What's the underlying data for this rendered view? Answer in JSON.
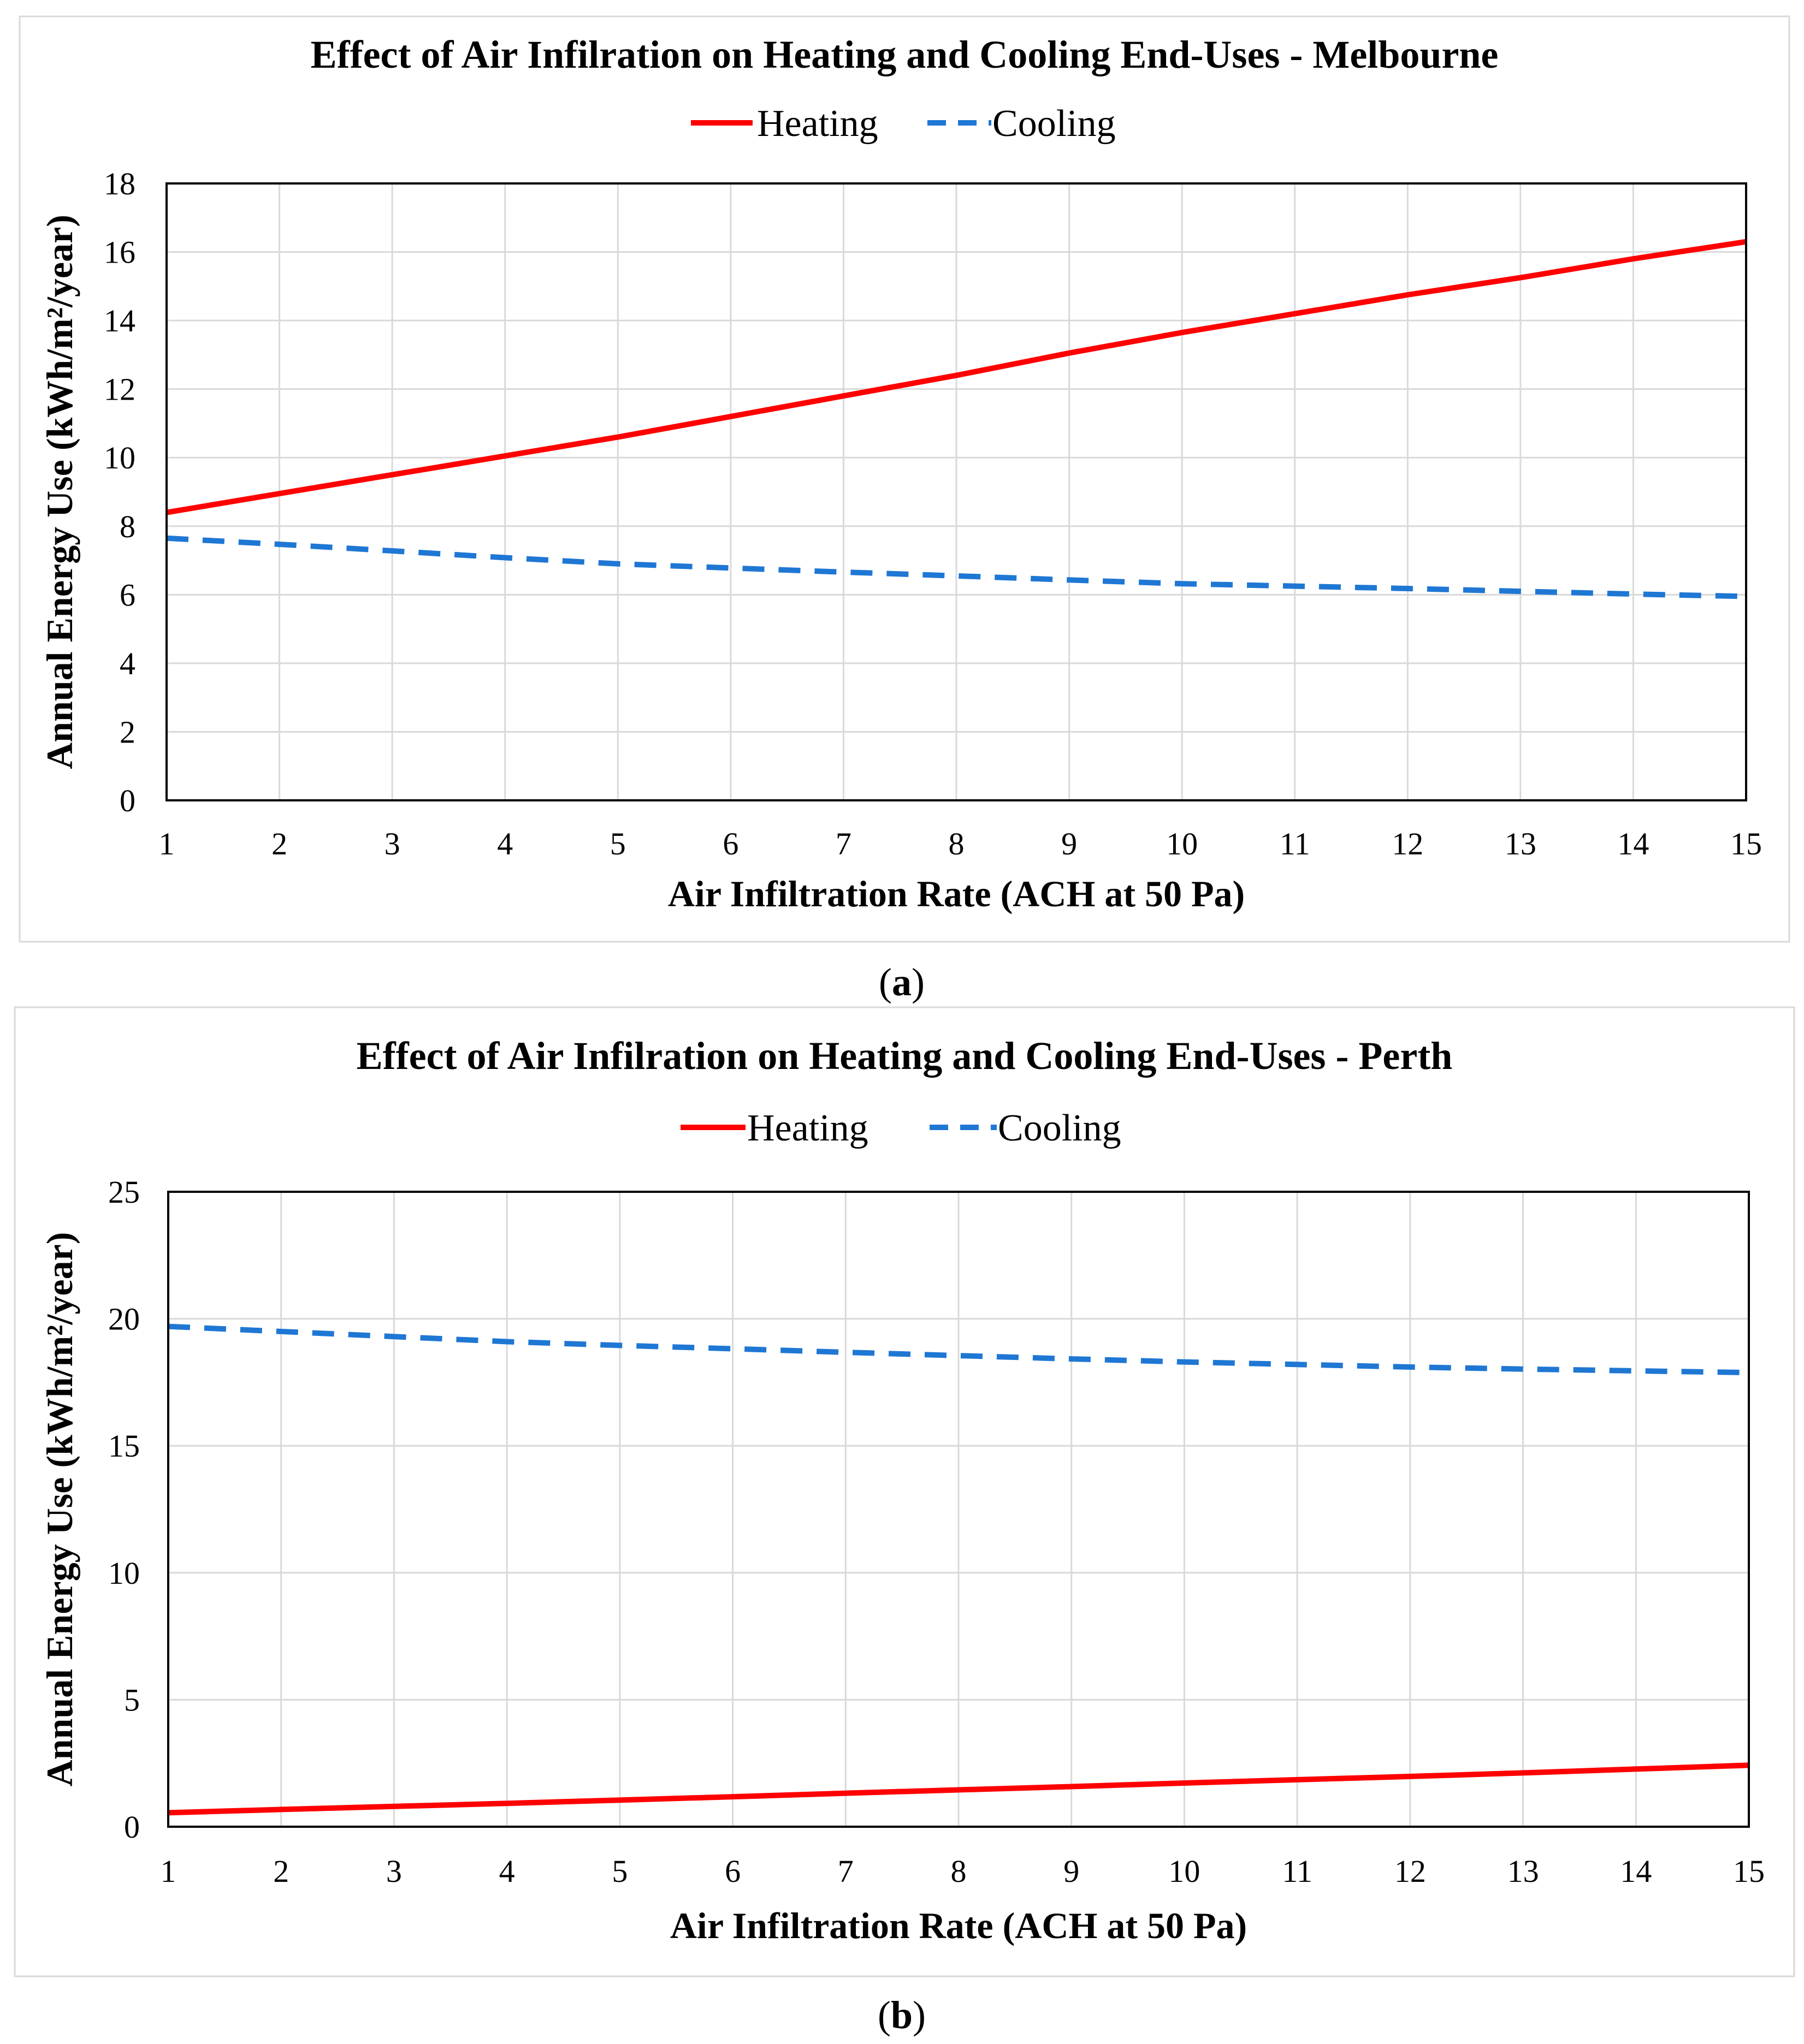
{
  "chart_data": [
    {
      "type": "line",
      "caption": {
        "open": "(",
        "letter": "a",
        "close": ")"
      },
      "title": "Effect of Air Infilration on Heating and Cooling End-Uses - Melbourne",
      "xlabel": "Air Infiltration Rate (ACH at 50 Pa)",
      "ylabel": "Annual Energy Use (kWh/m²/year)",
      "xlim": [
        1,
        15
      ],
      "ylim": [
        0,
        18
      ],
      "x_ticks": [
        1,
        2,
        3,
        4,
        5,
        6,
        7,
        8,
        9,
        10,
        11,
        12,
        13,
        14,
        15
      ],
      "y_ticks": [
        0,
        2,
        4,
        6,
        8,
        10,
        12,
        14,
        16,
        18
      ],
      "grid": true,
      "legend_position": "top-center",
      "x": [
        1,
        2,
        3,
        4,
        5,
        6,
        7,
        8,
        9,
        10,
        11,
        12,
        13,
        14,
        15
      ],
      "series": [
        {
          "name": "Heating",
          "color": "#ff0000",
          "style": "solid",
          "values": [
            8.4,
            8.95,
            9.5,
            10.05,
            10.6,
            11.2,
            11.8,
            12.4,
            13.05,
            13.65,
            14.2,
            14.75,
            15.25,
            15.8,
            16.3
          ]
        },
        {
          "name": "Cooling",
          "color": "#1f77d4",
          "style": "dashed",
          "values": [
            7.65,
            7.47,
            7.28,
            7.08,
            6.9,
            6.78,
            6.66,
            6.55,
            6.43,
            6.32,
            6.25,
            6.18,
            6.1,
            6.02,
            5.95
          ]
        }
      ]
    },
    {
      "type": "line",
      "caption": {
        "open": "(",
        "letter": "b",
        "close": ")"
      },
      "title": "Effect of Air Infilration on Heating and Cooling End-Uses - Perth",
      "xlabel": "Air Infiltration Rate (ACH at 50 Pa)",
      "ylabel": "Annual Energy Use (kWh/m²/year)",
      "xlim": [
        1,
        15
      ],
      "ylim": [
        0,
        25
      ],
      "x_ticks": [
        1,
        2,
        3,
        4,
        5,
        6,
        7,
        8,
        9,
        10,
        11,
        12,
        13,
        14,
        15
      ],
      "y_ticks": [
        0,
        5,
        10,
        15,
        20,
        25
      ],
      "grid": true,
      "legend_position": "top-center",
      "x": [
        1,
        2,
        3,
        4,
        5,
        6,
        7,
        8,
        9,
        10,
        11,
        12,
        13,
        14,
        15
      ],
      "series": [
        {
          "name": "Heating",
          "color": "#ff0000",
          "style": "solid",
          "values": [
            0.55,
            0.68,
            0.8,
            0.92,
            1.05,
            1.18,
            1.32,
            1.45,
            1.58,
            1.72,
            1.85,
            1.98,
            2.12,
            2.27,
            2.42
          ]
        },
        {
          "name": "Cooling",
          "color": "#1f77d4",
          "style": "dashed",
          "values": [
            19.7,
            19.5,
            19.3,
            19.1,
            18.95,
            18.82,
            18.68,
            18.55,
            18.42,
            18.3,
            18.2,
            18.1,
            18.02,
            17.95,
            17.88
          ]
        }
      ]
    }
  ]
}
